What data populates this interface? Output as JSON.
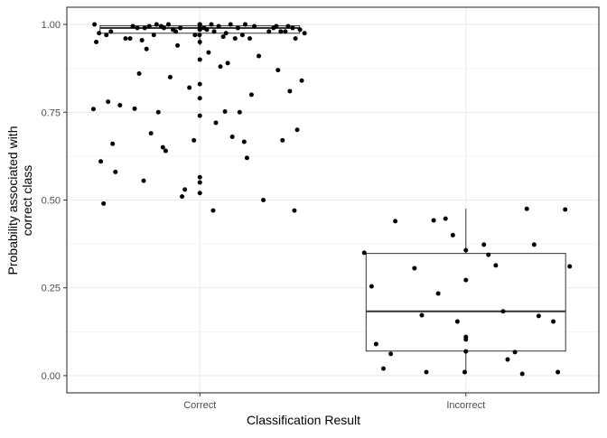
{
  "chart_data": {
    "type": "boxplot",
    "xlabel": "Classification Result",
    "ylabel_lines": [
      "Probability associated with",
      "correct class"
    ],
    "categories": [
      "Correct",
      "Incorrect"
    ],
    "ylim": [
      -0.049,
      1.049
    ],
    "yticks": [
      {
        "value": 0,
        "label": "0.00"
      },
      {
        "value": 0.25,
        "label": "0.25"
      },
      {
        "value": 0.5,
        "label": "0.50"
      },
      {
        "value": 0.75,
        "label": "0.75"
      },
      {
        "value": 1,
        "label": "1.00"
      }
    ],
    "grid": true,
    "color": "#000000",
    "boxes": [
      {
        "whisker_low": 0.94,
        "q1": 0.975,
        "median": 0.99,
        "q3": 0.996,
        "whisker_high": 1.0
      },
      {
        "whisker_low": 0.005,
        "q1": 0.07,
        "median": 0.183,
        "q3": 0.348,
        "whisker_high": 0.475
      }
    ],
    "points": [
      {
        "values": [
          0.759,
          0.752,
          0.555,
          0.565,
          0.67,
          0.66,
          0.666,
          0.65,
          0.47,
          0.47,
          0.52,
          0.5,
          0.51,
          0.61,
          0.68,
          0.69,
          0.67,
          0.74,
          0.77,
          0.8,
          0.85,
          0.84,
          0.88,
          0.86,
          0.83,
          0.82,
          0.78,
          0.75,
          0.75,
          0.81,
          0.92,
          0.9,
          0.91,
          0.94,
          0.95,
          0.89,
          0.93,
          0.87,
          0.55,
          0.58,
          0.62,
          0.64,
          0.7,
          0.72,
          0.76,
          0.79,
          0.53,
          0.49,
          0.96,
          0.97,
          0.98,
          0.99,
          1.0,
          0.995,
          0.985,
          0.975,
          0.965,
          0.955,
          0.99,
          1.0,
          0.98,
          0.97,
          0.995,
          0.99,
          1.0,
          0.96,
          0.985,
          0.99,
          0.975,
          1.0,
          0.995,
          0.98,
          0.97,
          0.99,
          0.96,
          1.0,
          0.985,
          0.995,
          0.99,
          0.98,
          0.95,
          0.97,
          0.99,
          1.0,
          0.995,
          0.985,
          0.96,
          0.99,
          0.98,
          1.0,
          0.975,
          0.99,
          0.995,
          0.97,
          0.985,
          1.0,
          0.99,
          0.96,
          0.98,
          0.995
        ]
      },
      {
        "values": [
          0.234,
          0.311,
          0.344,
          0.272,
          0.17,
          0.154,
          0.09,
          0.046,
          0.01,
          0.01,
          0.069,
          0.44,
          0.475,
          0.447,
          0.35,
          0.314,
          0.306,
          0.103,
          0.01,
          0.02,
          0.067,
          0.442,
          0.473,
          0.373,
          0.357,
          0.373,
          0.4,
          0.254,
          0.183,
          0.172,
          0.154,
          0.11,
          0.062,
          0.005
        ]
      }
    ]
  }
}
